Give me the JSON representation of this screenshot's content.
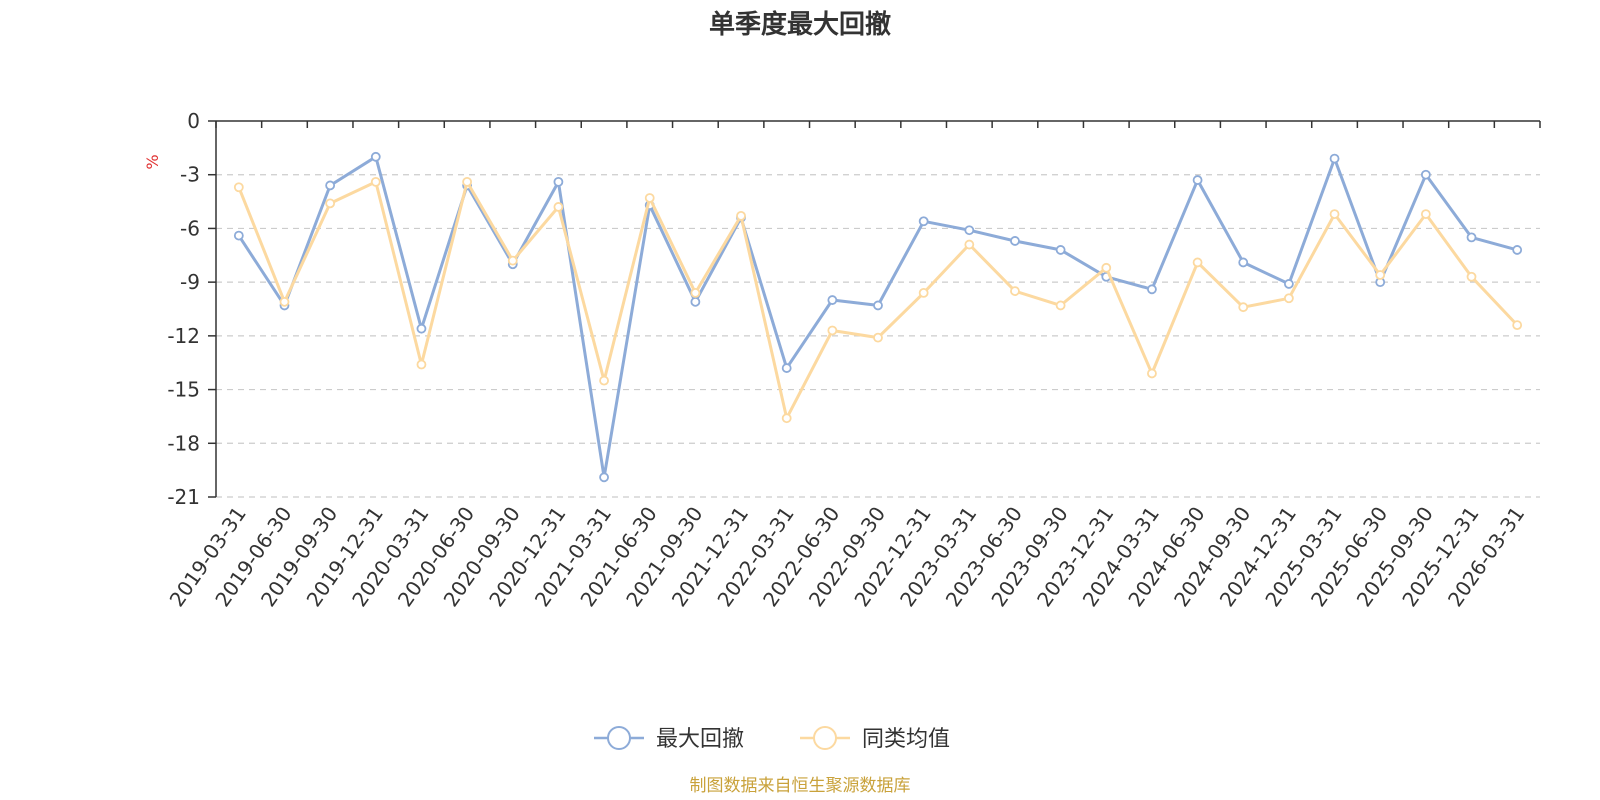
{
  "chart_data": {
    "type": "line",
    "title": "单季度最大回撤",
    "ylabel": "%",
    "ylim": [
      -21,
      0
    ],
    "yticks": [
      0,
      -3,
      -6,
      -9,
      -12,
      -15,
      -18,
      -21
    ],
    "grid": true,
    "legend_position": "bottom",
    "categories": [
      "2019-03-31",
      "2019-06-30",
      "2019-09-30",
      "2019-12-31",
      "2020-03-31",
      "2020-06-30",
      "2020-09-30",
      "2020-12-31",
      "2021-03-31",
      "2021-06-30",
      "2021-09-30",
      "2021-12-31",
      "2022-03-31",
      "2022-06-30",
      "2022-09-30",
      "2022-12-31",
      "2023-03-31",
      "2023-06-30",
      "2023-09-30",
      "2023-12-31",
      "2024-03-31",
      "2024-06-30",
      "2024-09-30",
      "2024-12-31",
      "2025-03-31",
      "2025-06-30",
      "2025-09-30",
      "2025-12-31",
      "2026-03-31"
    ],
    "series": [
      {
        "name": "最大回撤",
        "color": "#8dabd8",
        "values": [
          -6.4,
          -10.3,
          -3.6,
          -2.0,
          -11.6,
          -3.6,
          -8.0,
          -3.4,
          -19.9,
          -4.7,
          -10.1,
          -5.4,
          -13.8,
          -10.0,
          -10.3,
          -5.6,
          -6.1,
          -6.7,
          -7.2,
          -8.7,
          -9.4,
          -3.3,
          -7.9,
          -9.1,
          -2.1,
          -9.0,
          -3.0,
          -6.5,
          -7.2
        ]
      },
      {
        "name": "同类均值",
        "color": "#fcd9a0",
        "values": [
          -3.7,
          -10.1,
          -4.6,
          -3.4,
          -13.6,
          -3.4,
          -7.8,
          -4.8,
          -14.5,
          -4.3,
          -9.6,
          -5.3,
          -16.6,
          -11.7,
          -12.1,
          -9.6,
          -6.9,
          -9.5,
          -10.3,
          -8.2,
          -14.1,
          -7.9,
          -10.4,
          -9.9,
          -5.2,
          -8.6,
          -5.2,
          -8.7,
          -11.4
        ]
      }
    ],
    "source": "制图数据来自恒生聚源数据库"
  }
}
